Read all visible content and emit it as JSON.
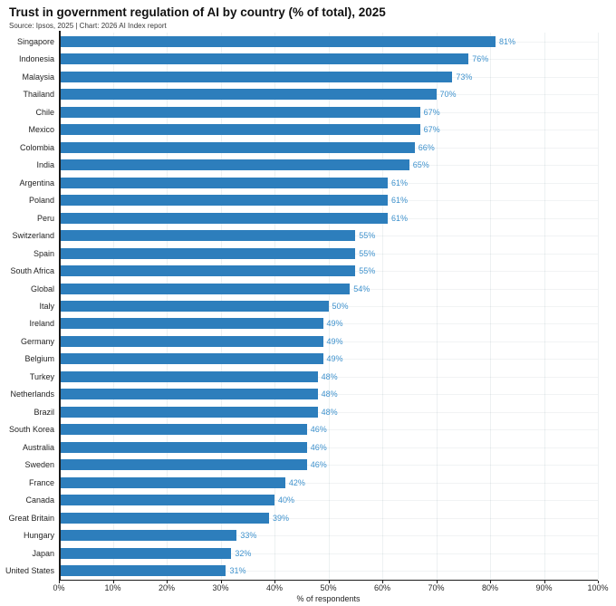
{
  "header": {
    "title": "Trust in government regulation of AI by country (% of total), 2025",
    "subtitle": "Source: Ipsos, 2025 | Chart: 2026 AI Index report"
  },
  "colors": {
    "bar": "#2D7EBC",
    "value_label": "#3F92CD",
    "axis": "#1a1a1a",
    "gridline": "#edf1f2"
  },
  "chart_data": {
    "type": "bar",
    "orientation": "horizontal",
    "title": "Trust in government regulation of AI by country (% of total), 2025",
    "subtitle": "Source: Ipsos, 2025 | Chart: 2026 AI Index report",
    "xlabel": "% of respondents",
    "ylabel": "",
    "xlim": [
      0,
      100
    ],
    "grid": true,
    "legend": "none",
    "value_suffix": "%",
    "x_ticks": [
      "0%",
      "10%",
      "20%",
      "30%",
      "40%",
      "50%",
      "60%",
      "70%",
      "80%",
      "90%",
      "100%"
    ],
    "categories": [
      "Singapore",
      "Indonesia",
      "Malaysia",
      "Thailand",
      "Chile",
      "Mexico",
      "Colombia",
      "India",
      "Argentina",
      "Poland",
      "Peru",
      "Switzerland",
      "Spain",
      "South Africa",
      "Global",
      "Italy",
      "Ireland",
      "Germany",
      "Belgium",
      "Turkey",
      "Netherlands",
      "Brazil",
      "South Korea",
      "Australia",
      "Sweden",
      "France",
      "Canada",
      "Great Britain",
      "Hungary",
      "Japan",
      "United States"
    ],
    "values": [
      81,
      76,
      73,
      70,
      67,
      67,
      66,
      65,
      61,
      61,
      61,
      55,
      55,
      55,
      54,
      50,
      49,
      49,
      49,
      48,
      48,
      48,
      46,
      46,
      46,
      42,
      40,
      39,
      33,
      32,
      31
    ]
  }
}
